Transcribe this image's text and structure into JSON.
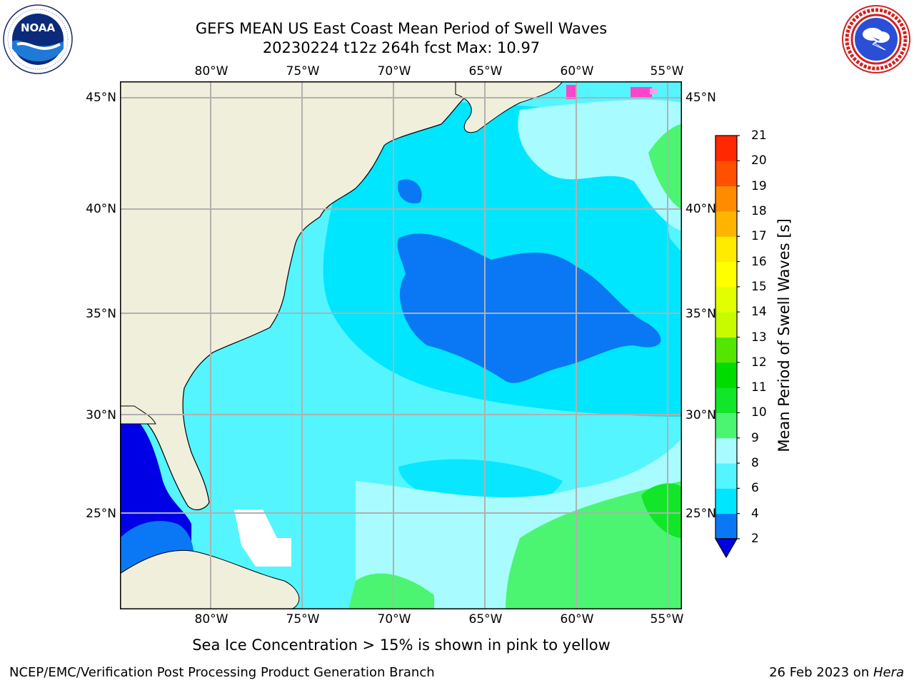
{
  "title": {
    "line1": "GEFS MEAN US East Coast Mean Period of Swell Waves",
    "line2": "20230224 t12z 264h fcst   Max: 10.97"
  },
  "logos": {
    "left": {
      "text": "NOAA",
      "ring_text": "NATIONAL OCEANIC AND ATMOSPHERIC ADMINISTRATION · U.S. DEPARTMENT OF COMMERCE"
    },
    "right": {
      "ring_text": "NATIONAL WEATHER SERVICE"
    }
  },
  "map": {
    "lon_labels": [
      "80°W",
      "75°W",
      "70°W",
      "65°W",
      "60°W",
      "55°W"
    ],
    "lat_labels": [
      "45°N",
      "40°N",
      "35°N",
      "30°N",
      "25°N"
    ],
    "colors": {
      "land": "#efefdc",
      "gridline": "#b0b0b0",
      "no_data": "#ffffff"
    }
  },
  "colorbar": {
    "label": "Mean Period of Swell Waves [s]",
    "ticks": [
      "2",
      "4",
      "6",
      "8",
      "9",
      "10",
      "11",
      "12",
      "13",
      "14",
      "15",
      "16",
      "17",
      "18",
      "19",
      "20",
      "21"
    ],
    "colors": [
      "#0a78f5",
      "#00e6ff",
      "#54f5ff",
      "#a8fcff",
      "#4bf572",
      "#12e628",
      "#00dc00",
      "#54e600",
      "#c8fa00",
      "#e1ff00",
      "#ffff00",
      "#ffeb00",
      "#ffb400",
      "#ff8c00",
      "#ff5000",
      "#ff2800",
      "#ff0000"
    ],
    "under_color": "#0000e6"
  },
  "chart_data": {
    "type": "heatmap",
    "title": "GEFS MEAN US East Coast Mean Period of Swell Waves",
    "subtitle": "20230224 t12z 264h fcst   Max: 10.97",
    "variable": "Mean Period of Swell Waves [s]",
    "max_value": 10.97,
    "lon_ticks": [
      -80,
      -75,
      -70,
      -65,
      -60,
      -55
    ],
    "lat_ticks": [
      45,
      40,
      35,
      30,
      25
    ],
    "color_levels": [
      2,
      4,
      6,
      8,
      9,
      10,
      11,
      12,
      13,
      14,
      15,
      16,
      17,
      18,
      19,
      20,
      21
    ],
    "grid": true,
    "note": "Sea Ice Concentration > 15% is shown in pink to yellow"
  },
  "footer": {
    "left": "NCEP/EMC/Verification Post Processing Product Generation Branch",
    "right_date": "26 Feb 2023 on ",
    "right_machine": "Hera"
  }
}
